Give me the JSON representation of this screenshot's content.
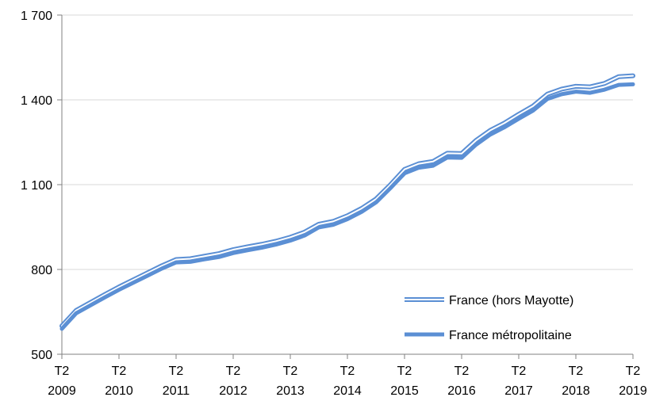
{
  "chart_data": {
    "type": "line",
    "title": "",
    "xlabel": "",
    "ylabel": "",
    "ylim": [
      500,
      1700
    ],
    "yticks": [
      500,
      800,
      1100,
      1400,
      1700
    ],
    "ytick_labels": [
      "500",
      "800",
      "1 100",
      "1 400",
      "1 700"
    ],
    "xtick_labels": [
      [
        "T2",
        "2009"
      ],
      [
        "T2",
        "2010"
      ],
      [
        "T2",
        "2011"
      ],
      [
        "T2",
        "2012"
      ],
      [
        "T2",
        "2013"
      ],
      [
        "T2",
        "2014"
      ],
      [
        "T2",
        "2015"
      ],
      [
        "T2",
        "2016"
      ],
      [
        "T2",
        "2017"
      ],
      [
        "T2",
        "2018"
      ],
      [
        "T2",
        "2019"
      ]
    ],
    "x": [
      "2009-T2",
      "2009-T3",
      "2009-T4",
      "2010-T1",
      "2010-T2",
      "2010-T3",
      "2010-T4",
      "2011-T1",
      "2011-T2",
      "2011-T3",
      "2011-T4",
      "2012-T1",
      "2012-T2",
      "2012-T3",
      "2012-T4",
      "2013-T1",
      "2013-T2",
      "2013-T3",
      "2013-T4",
      "2014-T1",
      "2014-T2",
      "2014-T3",
      "2014-T4",
      "2015-T1",
      "2015-T2",
      "2015-T3",
      "2015-T4",
      "2016-T1",
      "2016-T2",
      "2016-T3",
      "2016-T4",
      "2017-T1",
      "2017-T2",
      "2017-T3",
      "2017-T4",
      "2018-T1",
      "2018-T2",
      "2018-T3",
      "2018-T4",
      "2019-T1",
      "2019-T2"
    ],
    "grid": true,
    "legend_position": "bottom-right",
    "series": [
      {
        "name": "France (hors Mayotte)",
        "style": "double",
        "color": "#5b8fd4",
        "values": [
          600,
          655,
          683,
          711,
          738,
          763,
          788,
          813,
          835,
          838,
          847,
          856,
          870,
          880,
          889,
          900,
          914,
          932,
          960,
          970,
          990,
          1016,
          1049,
          1099,
          1154,
          1174,
          1182,
          1211,
          1210,
          1256,
          1292,
          1318,
          1349,
          1378,
          1420,
          1438,
          1448,
          1446,
          1458,
          1482,
          1485
        ]
      },
      {
        "name": "France métropolitaine",
        "style": "thick",
        "color": "#5b8fd4",
        "values": [
          590,
          645,
          673,
          701,
          728,
          753,
          778,
          803,
          825,
          827,
          836,
          844,
          858,
          868,
          877,
          888,
          902,
          920,
          949,
          958,
          978,
          1004,
          1037,
          1087,
          1140,
          1160,
          1167,
          1196,
          1195,
          1241,
          1277,
          1303,
          1333,
          1362,
          1403,
          1420,
          1429,
          1425,
          1436,
          1453,
          1455
        ]
      }
    ]
  }
}
